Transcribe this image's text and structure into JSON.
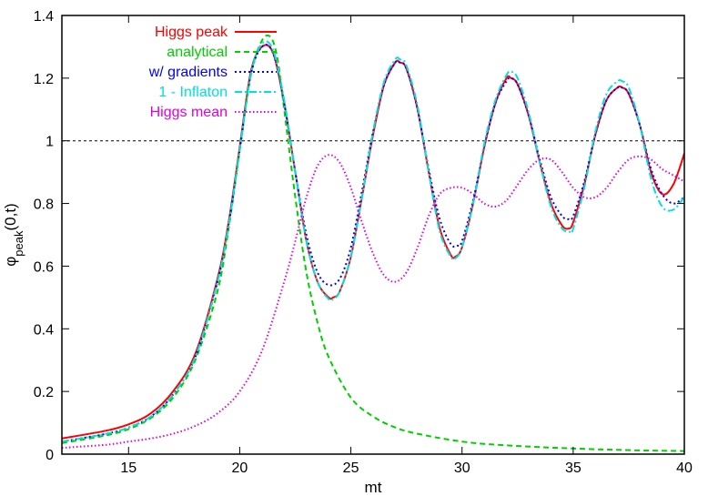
{
  "chart_data": {
    "type": "line",
    "xlabel": "mt",
    "ylabel_main": "φ",
    "ylabel_sub": "peak",
    "ylabel_tail": "(0,t)",
    "xlim": [
      12,
      40
    ],
    "ylim": [
      0,
      1.4
    ],
    "xticks": [
      15,
      20,
      25,
      30,
      35,
      40
    ],
    "yticks": [
      0,
      0.2,
      0.4,
      0.6,
      0.8,
      1,
      1.2,
      1.4
    ],
    "ytick_labels": [
      "0",
      "0.2",
      "0.4",
      "0.6",
      "0.8",
      "1",
      "1.2",
      "1.4"
    ],
    "reference_line": {
      "y": 1,
      "style": "dashed",
      "color": "#000000"
    },
    "legend_position": "top-left",
    "series": [
      {
        "name": "Higgs peak",
        "color": "#ff0000",
        "dash": "solid",
        "x": [
          12,
          14,
          15,
          16,
          17,
          18,
          19,
          19.5,
          20,
          20.5,
          21,
          21.5,
          22,
          22.5,
          23,
          23.5,
          24,
          24.2,
          24.5,
          25,
          25.5,
          26,
          26.5,
          27,
          27.2,
          27.5,
          28,
          28.5,
          29,
          29.5,
          29.7,
          30,
          30.5,
          31,
          31.5,
          32,
          32.2,
          32.5,
          33,
          33.5,
          34,
          34.5,
          34.8,
          35,
          35.5,
          36,
          36.5,
          37,
          37.2,
          37.5,
          38,
          38.5,
          39,
          39.5,
          40
        ],
        "values": [
          0.05,
          0.075,
          0.095,
          0.13,
          0.2,
          0.32,
          0.56,
          0.74,
          0.98,
          1.22,
          1.3,
          1.28,
          1.12,
          0.9,
          0.68,
          0.55,
          0.5,
          0.5,
          0.52,
          0.63,
          0.82,
          1.02,
          1.18,
          1.25,
          1.25,
          1.23,
          1.1,
          0.9,
          0.72,
          0.635,
          0.63,
          0.66,
          0.8,
          0.98,
          1.12,
          1.2,
          1.2,
          1.18,
          1.08,
          0.93,
          0.8,
          0.73,
          0.72,
          0.74,
          0.86,
          1.02,
          1.13,
          1.17,
          1.17,
          1.15,
          1.05,
          0.9,
          0.83,
          0.86,
          0.96
        ]
      },
      {
        "name": "analytical",
        "color": "#00d000",
        "dash": "6,4",
        "x": [
          12,
          14,
          15,
          16,
          17,
          18,
          19,
          19.5,
          20,
          20.5,
          21,
          21.4,
          21.7,
          22,
          22.5,
          23,
          23.5,
          24,
          25,
          26,
          27,
          28,
          30,
          32,
          35,
          38,
          40
        ],
        "values": [
          0.035,
          0.06,
          0.08,
          0.115,
          0.18,
          0.3,
          0.52,
          0.72,
          0.97,
          1.21,
          1.32,
          1.33,
          1.26,
          1.1,
          0.82,
          0.58,
          0.42,
          0.31,
          0.18,
          0.12,
          0.085,
          0.065,
          0.04,
          0.028,
          0.018,
          0.012,
          0.01
        ]
      },
      {
        "name": "w/ gradients",
        "color": "#0000ff",
        "dash": "2,3",
        "x": [
          12,
          14,
          15,
          16,
          17,
          18,
          19,
          19.5,
          20,
          20.5,
          21,
          21.5,
          22,
          22.5,
          23,
          23.5,
          24,
          24.5,
          25,
          25.5,
          26,
          26.5,
          27,
          27.2,
          27.5,
          28,
          28.5,
          29,
          29.5,
          29.8,
          30,
          30.5,
          31,
          31.5,
          32,
          32.2,
          32.5,
          33,
          33.5,
          34,
          34.5,
          34.8,
          35,
          35.5,
          36,
          36.5,
          37,
          37.2,
          37.5,
          38,
          38.5,
          39,
          39.5,
          40
        ],
        "values": [
          0.04,
          0.065,
          0.085,
          0.12,
          0.19,
          0.31,
          0.55,
          0.73,
          0.97,
          1.21,
          1.3,
          1.28,
          1.12,
          0.9,
          0.7,
          0.58,
          0.54,
          0.56,
          0.66,
          0.84,
          1.03,
          1.18,
          1.25,
          1.25,
          1.23,
          1.1,
          0.91,
          0.75,
          0.67,
          0.665,
          0.68,
          0.81,
          0.98,
          1.12,
          1.19,
          1.2,
          1.18,
          1.08,
          0.94,
          0.82,
          0.76,
          0.75,
          0.76,
          0.87,
          1.02,
          1.13,
          1.17,
          1.17,
          1.15,
          1.05,
          0.91,
          0.83,
          0.8,
          0.82
        ]
      },
      {
        "name": "1 - Inflaton",
        "color": "#00e0e0",
        "dash": "8,3,2,3",
        "x": [
          12,
          14,
          15,
          16,
          17,
          18,
          19,
          19.5,
          20,
          20.5,
          21,
          21.5,
          22,
          22.5,
          23,
          23.5,
          24,
          24.2,
          24.5,
          25,
          25.5,
          26,
          26.5,
          27,
          27.2,
          27.5,
          28,
          28.5,
          29,
          29.5,
          29.7,
          30,
          30.5,
          31,
          31.5,
          32,
          32.2,
          32.5,
          33,
          33.5,
          34,
          34.5,
          34.9,
          35,
          35.5,
          36,
          36.5,
          37,
          37.2,
          37.5,
          38,
          38.5,
          39,
          39.5,
          40
        ],
        "values": [
          0.04,
          0.065,
          0.085,
          0.12,
          0.19,
          0.31,
          0.55,
          0.73,
          0.97,
          1.21,
          1.31,
          1.29,
          1.13,
          0.9,
          0.68,
          0.55,
          0.495,
          0.495,
          0.52,
          0.63,
          0.82,
          1.03,
          1.19,
          1.26,
          1.26,
          1.24,
          1.11,
          0.9,
          0.71,
          0.63,
          0.625,
          0.66,
          0.8,
          0.99,
          1.13,
          1.21,
          1.22,
          1.2,
          1.09,
          0.93,
          0.79,
          0.72,
          0.71,
          0.72,
          0.85,
          1.03,
          1.15,
          1.19,
          1.19,
          1.17,
          1.05,
          0.88,
          0.79,
          0.78,
          0.82
        ]
      },
      {
        "name": "Higgs mean",
        "color": "#e000e0",
        "dash": "1.5,2.5",
        "x": [
          12,
          14,
          15,
          16,
          17,
          18,
          19,
          20,
          21,
          22,
          22.5,
          23,
          23.5,
          24,
          24.5,
          25,
          25.5,
          26,
          26.5,
          27,
          27.5,
          28,
          28.5,
          29,
          29.5,
          30,
          30.5,
          31,
          31.5,
          32,
          32.5,
          33,
          33.5,
          34,
          34.5,
          35,
          35.5,
          36,
          36.5,
          37,
          37.5,
          38,
          38.5,
          39,
          39.5,
          40
        ],
        "values": [
          0.02,
          0.03,
          0.04,
          0.05,
          0.065,
          0.09,
          0.13,
          0.2,
          0.33,
          0.55,
          0.68,
          0.82,
          0.92,
          0.955,
          0.93,
          0.85,
          0.74,
          0.64,
          0.57,
          0.55,
          0.58,
          0.66,
          0.76,
          0.83,
          0.85,
          0.85,
          0.83,
          0.8,
          0.79,
          0.81,
          0.86,
          0.91,
          0.94,
          0.94,
          0.9,
          0.85,
          0.82,
          0.82,
          0.85,
          0.9,
          0.94,
          0.95,
          0.94,
          0.91,
          0.89,
          0.87
        ]
      }
    ]
  }
}
